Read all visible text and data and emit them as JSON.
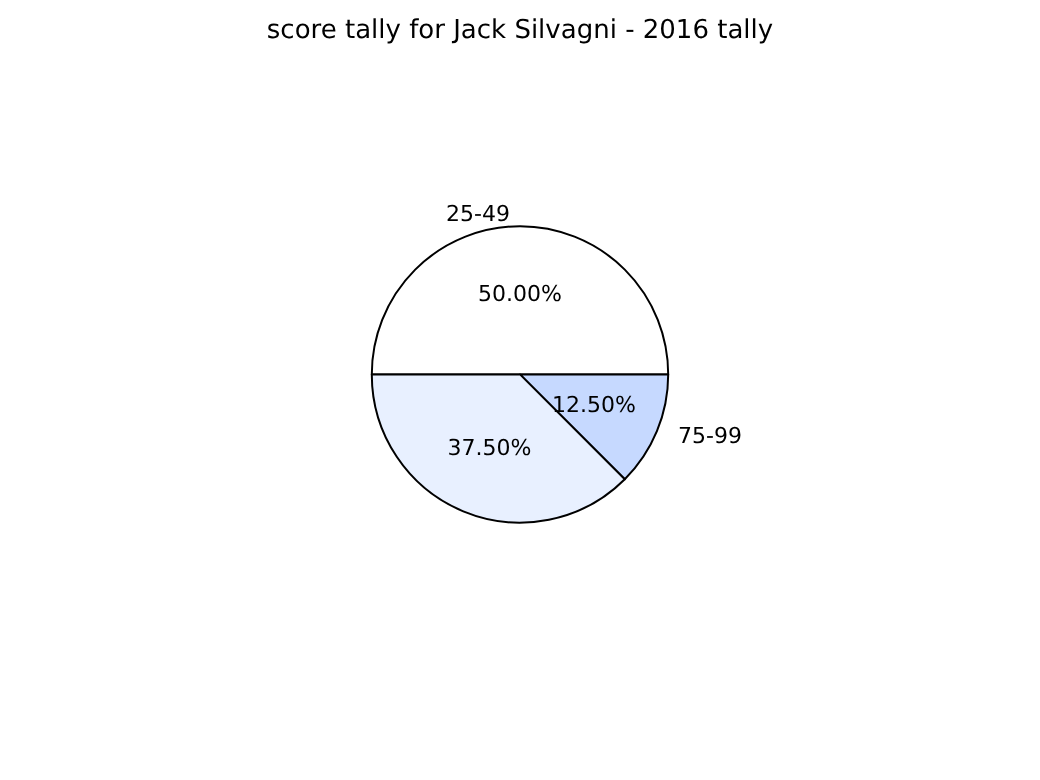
{
  "chart_data": {
    "type": "pie",
    "title": "score tally for Jack Silvagni - 2016 tally",
    "categories": [
      "25-49",
      "75-99",
      null
    ],
    "values": [
      50,
      12.5,
      37.5
    ],
    "value_labels": [
      "50.00%",
      "12.50%",
      "37.50%"
    ],
    "colors": [
      "#ffffff",
      "#c6d9ff",
      "#e8f0ff"
    ]
  }
}
